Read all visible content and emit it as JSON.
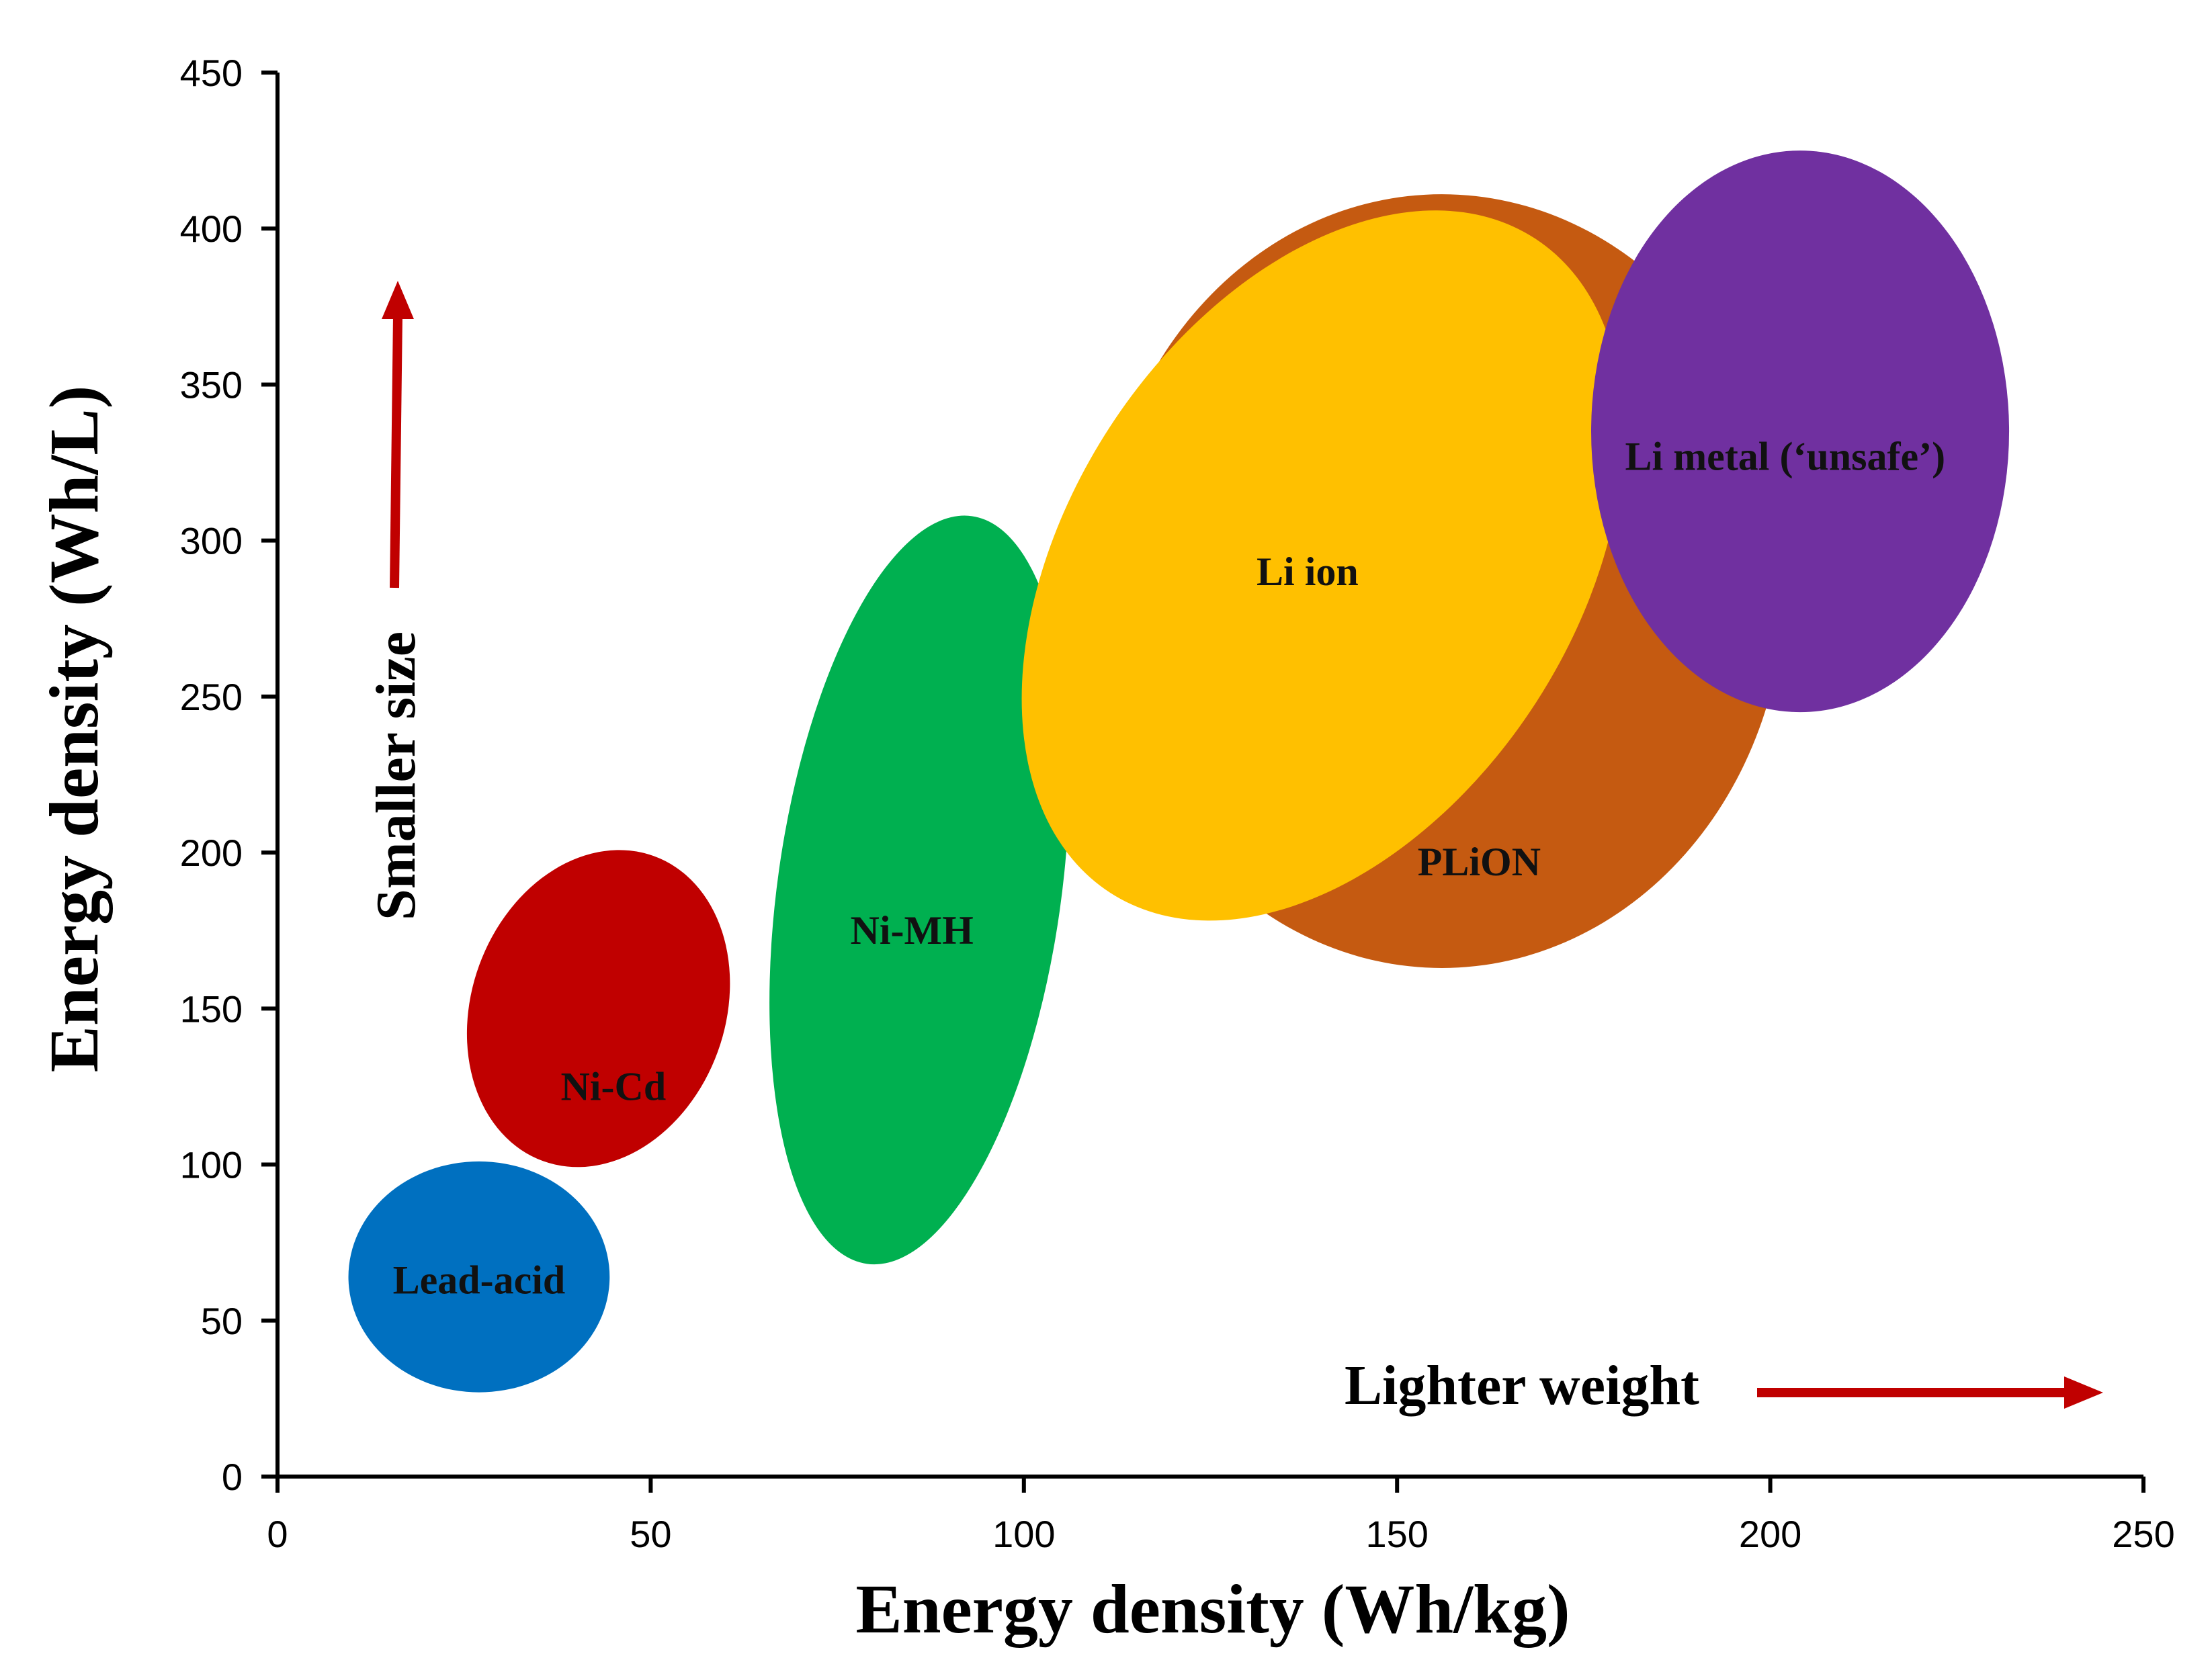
{
  "chart_data": {
    "type": "scatter",
    "title": "",
    "xlabel": "Energy density (Wh/kg)",
    "ylabel": "Energy density (Wh/L)",
    "xlim": [
      0,
      250
    ],
    "ylim": [
      0,
      450
    ],
    "x_ticks": [
      0,
      50,
      100,
      150,
      200,
      250
    ],
    "y_ticks": [
      0,
      50,
      100,
      150,
      200,
      250,
      300,
      350,
      400,
      450
    ],
    "grid": false,
    "regions": [
      {
        "name": "Ni-Cd",
        "color": "#C00000",
        "cx": 43,
        "cy": 150,
        "rx": 17,
        "ry": 52,
        "rotate": 20,
        "label_x": 45,
        "label_y": 125
      },
      {
        "name": "Lead-acid",
        "color": "#0070C0",
        "cx": 27,
        "cy": 64,
        "rx": 17.5,
        "ry": 37,
        "rotate": 0,
        "label_x": 27,
        "label_y": 63
      },
      {
        "name": "Ni-MH",
        "color": "#00B050",
        "cx": 86,
        "cy": 188,
        "rx": 19,
        "ry": 121,
        "rotate": 8,
        "label_x": 85,
        "label_y": 175
      },
      {
        "name": "PLiON",
        "color": "#C55A11",
        "cx": 156,
        "cy": 287,
        "rx": 46,
        "ry": 124,
        "rotate": 0,
        "label_x": 161,
        "label_y": 197
      },
      {
        "name": "Li ion",
        "color": "#FFC000",
        "cx": 140,
        "cy": 292,
        "rx": 34,
        "ry": 125,
        "rotate": 33,
        "label_x": 138,
        "label_y": 290
      },
      {
        "name": "Li metal (‘unsafe’)",
        "color": "#7030A0",
        "cx": 204,
        "cy": 335,
        "rx": 28,
        "ry": 90,
        "rotate": 0,
        "label_x": 202,
        "label_y": 327
      }
    ],
    "annotations": [
      {
        "text": "Smaller size",
        "arrow_color": "#C00000"
      },
      {
        "text": "Lighter weight",
        "arrow_color": "#C00000"
      }
    ]
  }
}
